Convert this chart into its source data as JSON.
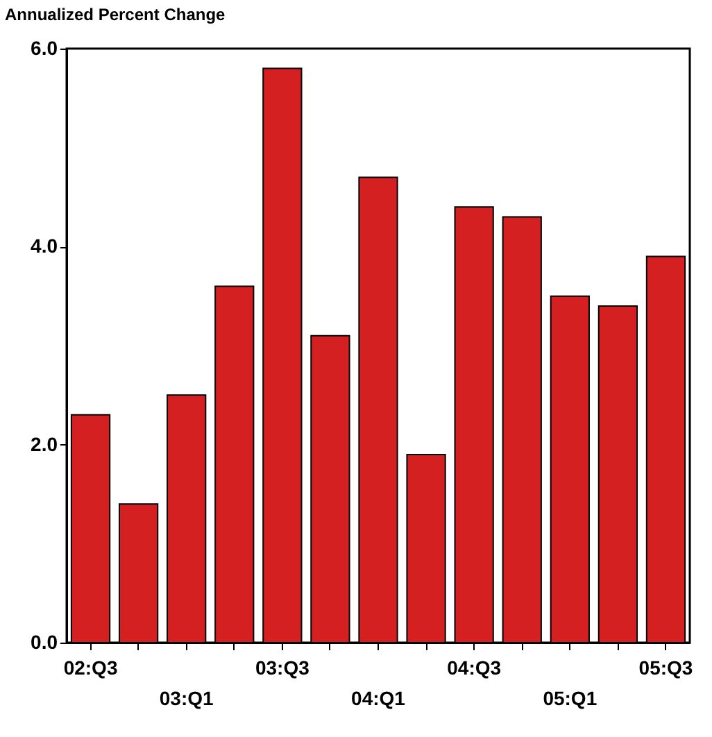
{
  "chart_data": {
    "type": "bar",
    "ylabel": "Annualized Percent Change",
    "categories": [
      "02:Q3",
      null,
      "03:Q1",
      null,
      "03:Q3",
      null,
      "04:Q1",
      null,
      "04:Q3",
      null,
      "05:Q1",
      null,
      "05:Q3"
    ],
    "values": [
      2.3,
      1.4,
      2.5,
      3.6,
      5.8,
      3.1,
      4.7,
      1.9,
      4.4,
      4.3,
      3.5,
      3.4,
      3.9
    ],
    "color": "#d42020",
    "ylim": [
      0,
      6
    ],
    "yticks": [
      {
        "value": 0,
        "label": "0.0"
      },
      {
        "value": 2,
        "label": "2.0"
      },
      {
        "value": 4,
        "label": "4.0"
      },
      {
        "value": 6,
        "label": "6.0"
      }
    ],
    "grid": false
  }
}
